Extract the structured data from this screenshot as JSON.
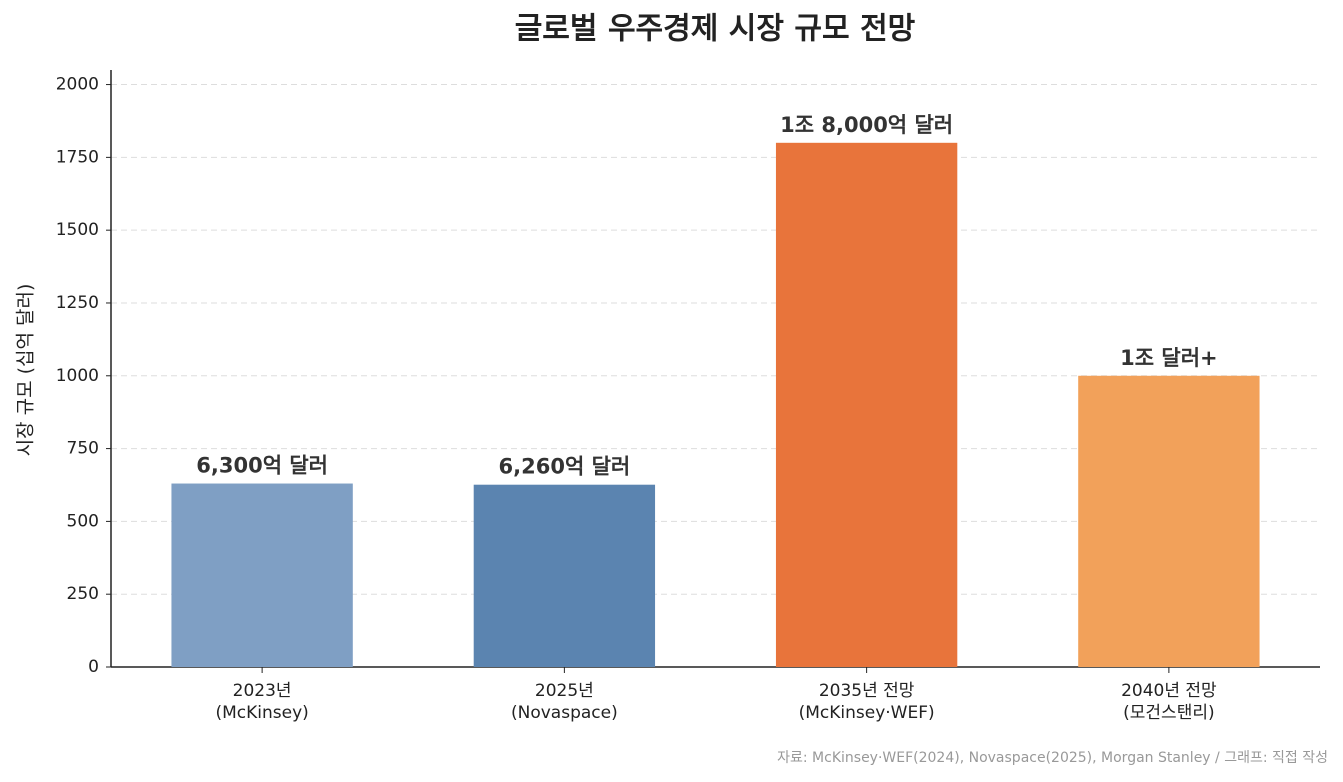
{
  "chart_data": {
    "type": "bar",
    "title": "글로벌 우주경제 시장 규모 전망",
    "y_label": "시장 규모 (십억 달러)",
    "source": "자료: McKinsey·WEF(2024), Novaspace(2025), Morgan Stanley / 그래프: 직접 작성",
    "categories": [
      "2023년\n(McKinsey)",
      "2025년\n(Novaspace)",
      "2035년 전망\n(McKinsey·WEF)",
      "2040년 전망\n(모건스탠리)"
    ],
    "values": [
      630,
      626,
      1800,
      1000
    ],
    "value_labels": [
      "6,300억 달러",
      "6,260억 달러",
      "1조 8,000억 달러",
      "1조 달러+"
    ],
    "colors": [
      "#7f9fc4",
      "#5b84b0",
      "#e8743b",
      "#f2a15a"
    ],
    "ylim": [
      0,
      2050
    ],
    "yticks": [
      0,
      250,
      500,
      750,
      1000,
      1250,
      1500,
      1750,
      2000
    ],
    "grid": true
  }
}
